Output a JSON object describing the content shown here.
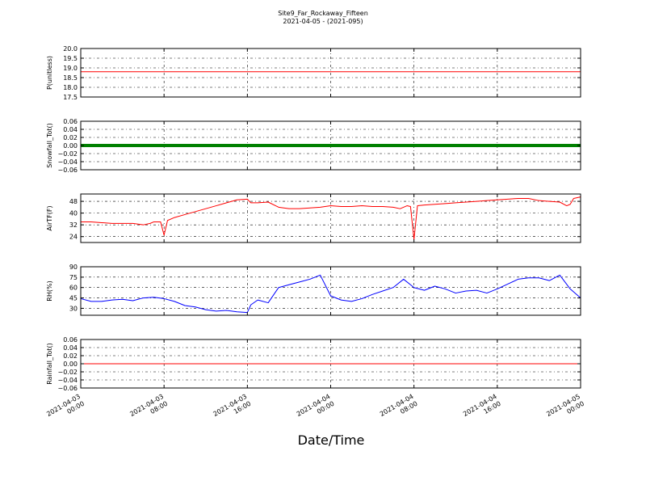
{
  "chart_data": {
    "type": "line",
    "title": "Site9_Far_Rockaway_Fifteen",
    "subtitle": "2021-04-05 - (2021-095)",
    "xlabel": "Date/Time",
    "x_ticks": [
      "2021-04-03 00:00",
      "2021-04-03 08:00",
      "2021-04-03 16:00",
      "2021-04-04 00:00",
      "2021-04-04 08:00",
      "2021-04-04 16:00",
      "2021-04-05 00:00"
    ],
    "x_tick_lines": [
      [
        "2021-04-03",
        "00:00"
      ],
      [
        "2021-04-03",
        "08:00"
      ],
      [
        "2021-04-03",
        "16:00"
      ],
      [
        "2021-04-04",
        "00:00"
      ],
      [
        "2021-04-04",
        "08:00"
      ],
      [
        "2021-04-04",
        "16:00"
      ],
      [
        "2021-04-05",
        "00:00"
      ]
    ],
    "xlim": [
      "2021-04-03 00:00",
      "2021-04-05 00:00"
    ],
    "grid": true,
    "panels": [
      {
        "ylabel": "P(unitless)",
        "ylim": [
          17.5,
          20.0
        ],
        "yticks": [
          17.5,
          18.0,
          18.5,
          19.0,
          19.5,
          20.0
        ],
        "ytick_labels": [
          "17.5",
          "18.0",
          "18.5",
          "19.0",
          "19.5",
          "20.0"
        ],
        "color": "#ff0000",
        "style": "line",
        "points": [
          [
            "2021-04-03 00:00",
            18.8
          ],
          [
            "2021-04-05 00:00",
            18.8
          ]
        ]
      },
      {
        "ylabel": "Snowfall_Tot()",
        "ylim": [
          -0.06,
          0.06
        ],
        "yticks": [
          -0.06,
          -0.04,
          -0.02,
          0.0,
          0.02,
          0.04,
          0.06
        ],
        "ytick_labels": [
          "−0.06",
          "−0.04",
          "−0.02",
          "0.00",
          "0.02",
          "0.04",
          "0.06"
        ],
        "color": "#008000",
        "style": "thick",
        "points": [
          [
            "2021-04-03 00:00",
            0.0
          ],
          [
            "2021-04-05 00:00",
            0.0
          ]
        ]
      },
      {
        "ylabel": "AirTF(F)",
        "ylim": [
          20,
          53
        ],
        "yticks": [
          24,
          32,
          40,
          48
        ],
        "ytick_labels": [
          "24",
          "32",
          "40",
          "48"
        ],
        "color": "#ff0000",
        "style": "line",
        "points": [
          [
            "2021-04-03 00:00",
            34
          ],
          [
            "2021-04-03 01:00",
            34
          ],
          [
            "2021-04-03 02:00",
            33.5
          ],
          [
            "2021-04-03 03:00",
            33
          ],
          [
            "2021-04-03 04:00",
            33
          ],
          [
            "2021-04-03 05:00",
            33
          ],
          [
            "2021-04-03 06:00",
            32
          ],
          [
            "2021-04-03 06:40",
            33
          ],
          [
            "2021-04-03 07:00",
            34
          ],
          [
            "2021-04-03 07:40",
            34
          ],
          [
            "2021-04-03 08:00",
            25
          ],
          [
            "2021-04-03 08:20",
            35
          ],
          [
            "2021-04-03 09:00",
            37
          ],
          [
            "2021-04-03 10:00",
            39
          ],
          [
            "2021-04-03 11:00",
            41
          ],
          [
            "2021-04-03 12:00",
            43
          ],
          [
            "2021-04-03 13:00",
            45
          ],
          [
            "2021-04-03 14:00",
            47
          ],
          [
            "2021-04-03 15:00",
            49
          ],
          [
            "2021-04-03 16:00",
            49.5
          ],
          [
            "2021-04-03 16:20",
            47
          ],
          [
            "2021-04-03 17:00",
            47
          ],
          [
            "2021-04-03 18:00",
            47.5
          ],
          [
            "2021-04-03 19:00",
            44
          ],
          [
            "2021-04-03 20:00",
            43
          ],
          [
            "2021-04-03 21:00",
            43
          ],
          [
            "2021-04-03 22:00",
            43.5
          ],
          [
            "2021-04-03 23:00",
            44
          ],
          [
            "2021-04-04 00:00",
            45
          ],
          [
            "2021-04-04 01:00",
            44.5
          ],
          [
            "2021-04-04 02:00",
            44.5
          ],
          [
            "2021-04-04 03:00",
            45
          ],
          [
            "2021-04-04 04:00",
            44.5
          ],
          [
            "2021-04-04 05:00",
            44.5
          ],
          [
            "2021-04-04 06:00",
            44
          ],
          [
            "2021-04-04 06:40",
            43
          ],
          [
            "2021-04-04 07:20",
            45
          ],
          [
            "2021-04-04 07:40",
            44.5
          ],
          [
            "2021-04-04 08:00",
            22
          ],
          [
            "2021-04-04 08:20",
            45
          ],
          [
            "2021-04-04 09:00",
            45.5
          ],
          [
            "2021-04-04 10:00",
            46
          ],
          [
            "2021-04-04 11:00",
            46.5
          ],
          [
            "2021-04-04 12:00",
            47
          ],
          [
            "2021-04-04 13:00",
            47.5
          ],
          [
            "2021-04-04 14:00",
            48
          ],
          [
            "2021-04-04 15:00",
            48.5
          ],
          [
            "2021-04-04 16:00",
            49
          ],
          [
            "2021-04-04 17:00",
            49.5
          ],
          [
            "2021-04-04 18:00",
            50
          ],
          [
            "2021-04-04 19:00",
            50
          ],
          [
            "2021-04-04 20:00",
            48.5
          ],
          [
            "2021-04-04 21:00",
            48
          ],
          [
            "2021-04-04 22:00",
            47.5
          ],
          [
            "2021-04-04 22:40",
            45
          ],
          [
            "2021-04-04 23:00",
            46
          ],
          [
            "2021-04-04 23:20",
            50
          ],
          [
            "2021-04-05 00:00",
            51
          ]
        ]
      },
      {
        "ylabel": "RH(%)",
        "ylim": [
          20,
          90
        ],
        "yticks": [
          30,
          45,
          60,
          75,
          90
        ],
        "ytick_labels": [
          "30",
          "45",
          "60",
          "75",
          "90"
        ],
        "color": "#0000ff",
        "style": "line",
        "points": [
          [
            "2021-04-03 00:00",
            44
          ],
          [
            "2021-04-03 01:00",
            40
          ],
          [
            "2021-04-03 02:00",
            40
          ],
          [
            "2021-04-03 03:00",
            42
          ],
          [
            "2021-04-03 04:00",
            43
          ],
          [
            "2021-04-03 05:00",
            41
          ],
          [
            "2021-04-03 06:00",
            45
          ],
          [
            "2021-04-03 07:00",
            46
          ],
          [
            "2021-04-03 08:00",
            44
          ],
          [
            "2021-04-03 09:00",
            40
          ],
          [
            "2021-04-03 10:00",
            34
          ],
          [
            "2021-04-03 11:00",
            32
          ],
          [
            "2021-04-03 12:00",
            28
          ],
          [
            "2021-04-03 13:00",
            26
          ],
          [
            "2021-04-03 14:00",
            27
          ],
          [
            "2021-04-03 15:00",
            25
          ],
          [
            "2021-04-03 16:00",
            24
          ],
          [
            "2021-04-03 16:20",
            35
          ],
          [
            "2021-04-03 17:00",
            42
          ],
          [
            "2021-04-03 18:00",
            38
          ],
          [
            "2021-04-03 19:00",
            60
          ],
          [
            "2021-04-03 20:00",
            64
          ],
          [
            "2021-04-03 21:00",
            68
          ],
          [
            "2021-04-03 22:00",
            72
          ],
          [
            "2021-04-03 23:00",
            78
          ],
          [
            "2021-04-04 00:00",
            48
          ],
          [
            "2021-04-04 01:00",
            42
          ],
          [
            "2021-04-04 02:00",
            40
          ],
          [
            "2021-04-04 03:00",
            44
          ],
          [
            "2021-04-04 04:00",
            50
          ],
          [
            "2021-04-04 05:00",
            55
          ],
          [
            "2021-04-04 06:00",
            60
          ],
          [
            "2021-04-04 07:00",
            72
          ],
          [
            "2021-04-04 08:00",
            60
          ],
          [
            "2021-04-04 09:00",
            56
          ],
          [
            "2021-04-04 10:00",
            62
          ],
          [
            "2021-04-04 11:00",
            58
          ],
          [
            "2021-04-04 12:00",
            52
          ],
          [
            "2021-04-04 13:00",
            55
          ],
          [
            "2021-04-04 14:00",
            56
          ],
          [
            "2021-04-04 15:00",
            52
          ],
          [
            "2021-04-04 16:00",
            58
          ],
          [
            "2021-04-04 17:00",
            65
          ],
          [
            "2021-04-04 18:00",
            72
          ],
          [
            "2021-04-04 19:00",
            74
          ],
          [
            "2021-04-04 20:00",
            74
          ],
          [
            "2021-04-04 21:00",
            70
          ],
          [
            "2021-04-04 22:00",
            78
          ],
          [
            "2021-04-04 23:00",
            58
          ],
          [
            "2021-04-05 00:00",
            45
          ]
        ]
      },
      {
        "ylabel": "Rainfall_Tot()",
        "ylim": [
          -0.06,
          0.06
        ],
        "yticks": [
          -0.06,
          -0.04,
          -0.02,
          0.0,
          0.02,
          0.04,
          0.06
        ],
        "ytick_labels": [
          "−0.06",
          "−0.04",
          "−0.02",
          "0.00",
          "0.02",
          "0.04",
          "0.06"
        ],
        "color": "#ff0000",
        "style": "line",
        "points": [
          [
            "2021-04-03 00:00",
            0.0
          ],
          [
            "2021-04-05 00:00",
            0.0
          ]
        ]
      }
    ]
  }
}
